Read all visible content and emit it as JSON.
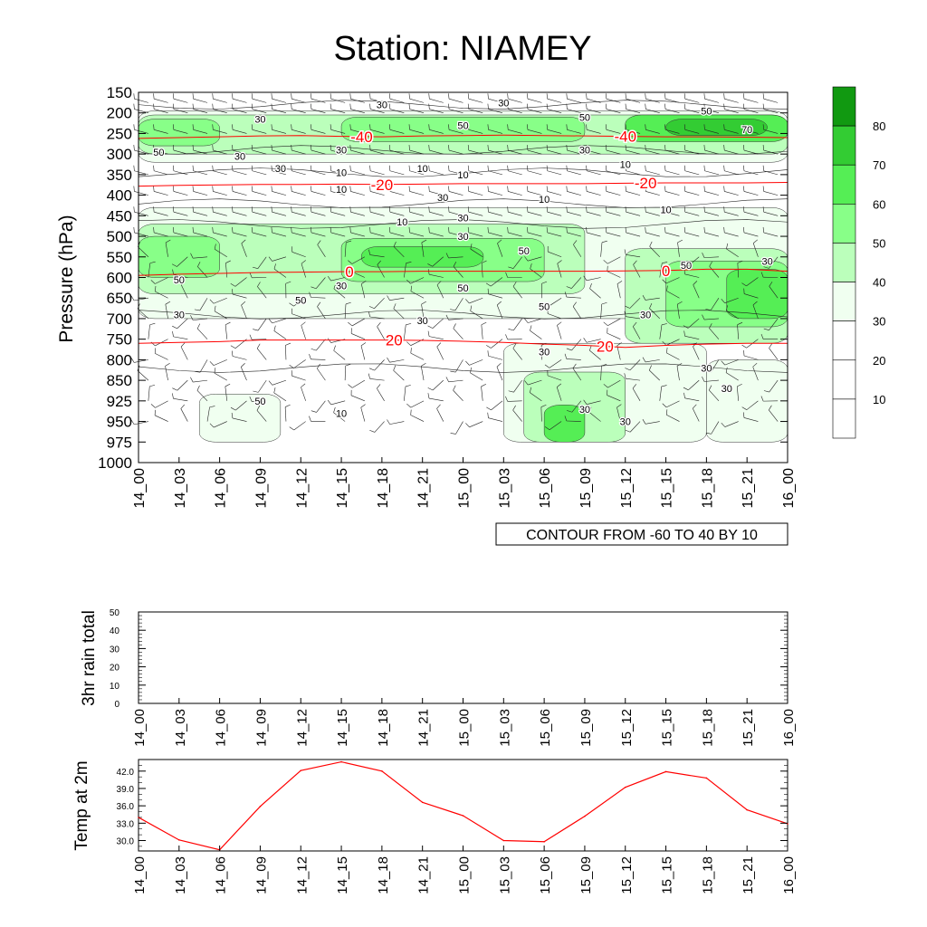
{
  "title": "Station: NIAMEY",
  "colors": {
    "contour_line": "#ff0000",
    "temp_line": "#ff0000",
    "shading": [
      "#ffffff",
      "#ffffff",
      "#ffffff",
      "#f0fff0",
      "#bbffbb",
      "#88ff88",
      "#55ee55",
      "#33cc33",
      "#119911"
    ]
  },
  "chart_data": [
    {
      "type": "heatmap",
      "panel": "pressure-time cross section",
      "ylabel": "Pressure (hPa)",
      "y_reversed": true,
      "yticks": [
        150,
        200,
        250,
        300,
        350,
        400,
        450,
        500,
        550,
        600,
        650,
        700,
        750,
        800,
        850,
        925,
        950,
        975,
        1000
      ],
      "xticks": [
        "14_00",
        "14_03",
        "14_06",
        "14_09",
        "14_12",
        "14_15",
        "14_18",
        "14_21",
        "15_00",
        "15_03",
        "15_06",
        "15_09",
        "15_12",
        "15_15",
        "15_18",
        "15_21",
        "16_00"
      ],
      "info_label": "CONTOUR FROM -60 TO 40 BY 10",
      "colorbar": {
        "levels": [
          10,
          20,
          30,
          40,
          50,
          60,
          70,
          80
        ]
      },
      "temperature_contours": [
        {
          "value": -40,
          "label": "-40",
          "pressure": [
            262,
            260,
            258,
            256,
            255,
            257,
            258,
            256,
            255,
            254,
            255,
            256,
            257,
            258,
            258,
            259,
            260
          ]
        },
        {
          "value": -20,
          "label": "-20",
          "pressure": [
            378,
            376,
            375,
            374,
            374,
            373,
            374,
            373,
            372,
            372,
            372,
            372,
            371,
            370,
            370,
            370,
            369
          ]
        },
        {
          "value": 0,
          "label": "0",
          "pressure": [
            595,
            592,
            590,
            588,
            587,
            586,
            586,
            585,
            585,
            585,
            585,
            585,
            584,
            583,
            580,
            580,
            585
          ]
        },
        {
          "value": 20,
          "label": "20",
          "pressure": [
            760,
            758,
            756,
            752,
            752,
            752,
            752,
            753,
            755,
            758,
            762,
            765,
            770,
            765,
            762,
            760,
            760
          ]
        }
      ],
      "contour_labels": [
        "30",
        "30",
        "30",
        "50",
        "50",
        "50",
        "50",
        "70",
        "30",
        "30",
        "30",
        "30",
        "10",
        "10",
        "10",
        "10",
        "10",
        "30",
        "10",
        "10",
        "10",
        "30",
        "30",
        "50",
        "50",
        "30",
        "50",
        "50",
        "50",
        "30",
        "50",
        "30",
        "30",
        "30",
        "30",
        "30",
        "30",
        "50",
        "30",
        "10",
        "30"
      ]
    },
    {
      "type": "bar",
      "ylabel": "3hr rain total",
      "ylim": [
        0,
        50
      ],
      "yticks": [
        0,
        10,
        20,
        30,
        40,
        50
      ],
      "categories": [
        "14_00",
        "14_03",
        "14_06",
        "14_09",
        "14_12",
        "14_15",
        "14_18",
        "14_21",
        "15_00",
        "15_03",
        "15_06",
        "15_09",
        "15_12",
        "15_15",
        "15_18",
        "15_21",
        "16_00"
      ],
      "values": [
        0,
        0,
        0,
        0,
        0,
        0,
        0,
        0,
        0,
        0,
        0,
        0,
        0,
        0,
        0,
        0,
        0
      ]
    },
    {
      "type": "line",
      "ylabel": "Temp at 2m",
      "ylim": [
        28.2,
        44.0
      ],
      "yticks": [
        "30.0",
        "33.0",
        "36.0",
        "39.0",
        "42.0"
      ],
      "x": [
        "14_00",
        "14_03",
        "14_06",
        "14_09",
        "14_12",
        "14_15",
        "14_18",
        "14_21",
        "15_00",
        "15_03",
        "15_06",
        "15_09",
        "15_12",
        "15_15",
        "15_18",
        "15_21",
        "16_00"
      ],
      "values": [
        34.0,
        30.1,
        28.4,
        35.9,
        42.1,
        43.6,
        42.0,
        36.6,
        34.3,
        30.0,
        29.8,
        34.2,
        39.2,
        41.9,
        40.8,
        35.3,
        32.9
      ]
    }
  ]
}
